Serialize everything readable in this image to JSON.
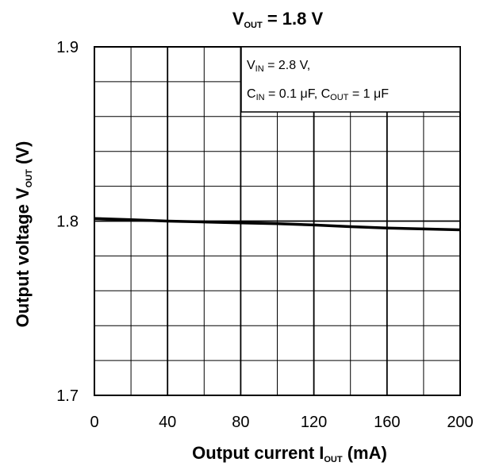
{
  "chart_data": {
    "type": "line",
    "title": {
      "main": "V",
      "sub": "OUT",
      "rest": " = 1.8 V"
    },
    "xlabel": {
      "main": "Output current   I",
      "sub": "OUT",
      "rest": "   (mA)"
    },
    "ylabel": {
      "main": "Output voltage   V",
      "sub": "OUT",
      "rest": "   (V)"
    },
    "xlim": [
      0,
      200
    ],
    "ylim": [
      1.7,
      1.9
    ],
    "x_ticks": [
      "0",
      "40",
      "80",
      "120",
      "160",
      "200"
    ],
    "y_ticks": [
      "1.7",
      "1.8",
      "1.9"
    ],
    "grid": true,
    "legend_placement": "top-right",
    "conditions": {
      "line1": {
        "a": "V",
        "a_sub": "IN",
        "a_rest": " = 2.8 V,"
      },
      "line2": {
        "a": "C",
        "a_sub": "IN",
        "a_rest": " = 0.1 μF, C",
        "b_sub": "OUT",
        "b_rest": " = 1 μF"
      }
    },
    "series": [
      {
        "x": [
          0,
          20,
          40,
          60,
          80,
          100,
          120,
          140,
          160,
          180,
          200
        ],
        "y": [
          1.8015,
          1.8008,
          1.8,
          1.7995,
          1.799,
          1.7985,
          1.7978,
          1.7968,
          1.796,
          1.7955,
          1.795
        ]
      }
    ],
    "line_color": "#000000"
  }
}
